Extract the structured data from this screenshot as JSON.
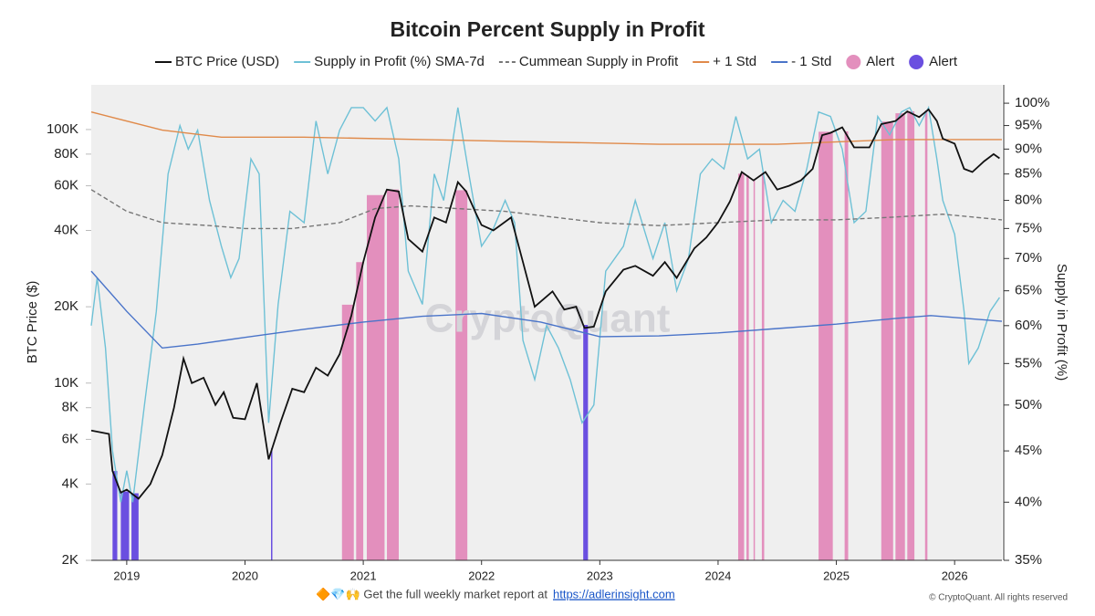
{
  "chart_data": {
    "type": "line",
    "title": "Bitcoin Percent Supply in Profit",
    "y_label": "BTC Price ($)",
    "y2_label": "Supply in Profit (%)",
    "watermark": "CryptoQuant",
    "footer_text": "🔶💎🙌 Get the full weekly market report at",
    "footer_link": "https://adlerinsight.com",
    "copyright": "© CryptoQuant. All rights reserved",
    "xlim": [
      2018.7,
      2026.4
    ],
    "xticks": [
      2019,
      2020,
      2021,
      2022,
      2023,
      2024,
      2025,
      2026
    ],
    "ylim": [
      2000,
      150000
    ],
    "log_y": true,
    "yticks": [
      {
        "value": 2000,
        "label": "2K"
      },
      {
        "value": 4000,
        "label": "4K"
      },
      {
        "value": 6000,
        "label": "6K"
      },
      {
        "value": 8000,
        "label": "8K"
      },
      {
        "value": 10000,
        "label": "10K"
      },
      {
        "value": 20000,
        "label": "20K"
      },
      {
        "value": 40000,
        "label": "40K"
      },
      {
        "value": 60000,
        "label": "60K"
      },
      {
        "value": 80000,
        "label": "80K"
      },
      {
        "value": 100000,
        "label": "100K"
      }
    ],
    "y2lim": [
      35,
      104.3
    ],
    "log_y2": true,
    "y2ticks": [
      {
        "value": 35,
        "label": "35%"
      },
      {
        "value": 40,
        "label": "40%"
      },
      {
        "value": 45,
        "label": "45%"
      },
      {
        "value": 50,
        "label": "50%"
      },
      {
        "value": 55,
        "label": "55%"
      },
      {
        "value": 60,
        "label": "60%"
      },
      {
        "value": 65,
        "label": "65%"
      },
      {
        "value": 70,
        "label": "70%"
      },
      {
        "value": 75,
        "label": "75%"
      },
      {
        "value": 80,
        "label": "80%"
      },
      {
        "value": 85,
        "label": "85%"
      },
      {
        "value": 90,
        "label": "90%"
      },
      {
        "value": 95,
        "label": "95%"
      },
      {
        "value": 100,
        "label": "100%"
      }
    ],
    "series": [
      {
        "name": "BTC Price (USD)",
        "color": "#111111",
        "axis": "y",
        "x": [
          2018.7,
          2018.85,
          2018.88,
          2018.95,
          2019.0,
          2019.1,
          2019.2,
          2019.3,
          2019.4,
          2019.48,
          2019.55,
          2019.65,
          2019.75,
          2019.82,
          2019.9,
          2020.0,
          2020.1,
          2020.2,
          2020.3,
          2020.4,
          2020.5,
          2020.6,
          2020.7,
          2020.8,
          2020.9,
          2021.0,
          2021.1,
          2021.2,
          2021.3,
          2021.38,
          2021.5,
          2021.6,
          2021.7,
          2021.8,
          2021.87,
          2021.95,
          2022.0,
          2022.1,
          2022.25,
          2022.35,
          2022.45,
          2022.6,
          2022.7,
          2022.8,
          2022.87,
          2022.95,
          2023.05,
          2023.2,
          2023.3,
          2023.45,
          2023.55,
          2023.65,
          2023.8,
          2023.9,
          2024.0,
          2024.1,
          2024.2,
          2024.3,
          2024.4,
          2024.5,
          2024.6,
          2024.7,
          2024.8,
          2024.88,
          2024.95,
          2025.05,
          2025.15,
          2025.28,
          2025.38,
          2025.5,
          2025.6,
          2025.7,
          2025.78,
          2025.85,
          2025.9,
          2026.0,
          2026.08,
          2026.15,
          2026.25,
          2026.33,
          2026.38
        ],
        "values": [
          6500,
          6300,
          4500,
          3700,
          3800,
          3500,
          4000,
          5200,
          8000,
          12500,
          10000,
          10500,
          8200,
          9200,
          7300,
          7200,
          10000,
          5000,
          7000,
          9500,
          9200,
          11500,
          10700,
          13000,
          18500,
          30000,
          45000,
          58000,
          57000,
          37000,
          33000,
          45000,
          43000,
          62000,
          57000,
          47000,
          42000,
          40000,
          45000,
          30000,
          20000,
          23000,
          19500,
          20000,
          16500,
          16700,
          23000,
          28000,
          29000,
          26500,
          30000,
          26000,
          34000,
          37500,
          43000,
          52000,
          68000,
          63000,
          68000,
          58000,
          60000,
          63000,
          70000,
          95000,
          97000,
          102000,
          85000,
          85000,
          105000,
          108000,
          118000,
          112000,
          120000,
          108000,
          92000,
          88000,
          70000,
          68000,
          75000,
          80000,
          77000
        ]
      },
      {
        "name": "Supply in Profit (%) SMA-7d",
        "color": "#6ec1d6",
        "axis": "y2",
        "x": [
          2018.7,
          2018.75,
          2018.82,
          2018.88,
          2018.95,
          2019.0,
          2019.05,
          2019.15,
          2019.25,
          2019.35,
          2019.45,
          2019.52,
          2019.6,
          2019.7,
          2019.8,
          2019.88,
          2019.95,
          2020.05,
          2020.12,
          2020.2,
          2020.28,
          2020.38,
          2020.5,
          2020.6,
          2020.7,
          2020.8,
          2020.9,
          2021.0,
          2021.1,
          2021.2,
          2021.3,
          2021.38,
          2021.5,
          2021.6,
          2021.68,
          2021.8,
          2021.9,
          2022.0,
          2022.1,
          2022.2,
          2022.28,
          2022.35,
          2022.45,
          2022.55,
          2022.65,
          2022.75,
          2022.85,
          2022.95,
          2023.05,
          2023.2,
          2023.3,
          2023.45,
          2023.55,
          2023.65,
          2023.75,
          2023.85,
          2023.95,
          2024.05,
          2024.15,
          2024.25,
          2024.35,
          2024.45,
          2024.55,
          2024.65,
          2024.75,
          2024.85,
          2024.95,
          2025.05,
          2025.15,
          2025.25,
          2025.35,
          2025.45,
          2025.55,
          2025.62,
          2025.7,
          2025.78,
          2025.85,
          2025.9,
          2026.0,
          2026.08,
          2026.12,
          2026.2,
          2026.3,
          2026.38
        ],
        "values": [
          60,
          67,
          57,
          45,
          40,
          43,
          40,
          50,
          62,
          85,
          95,
          90,
          94,
          80,
          72,
          67,
          70,
          88,
          85,
          48,
          63,
          78,
          76,
          96,
          85,
          94,
          99,
          99,
          96,
          99,
          88,
          68,
          63,
          85,
          80,
          99,
          84,
          72,
          75,
          80,
          76,
          58,
          53,
          60,
          57,
          53,
          48,
          50,
          68,
          72,
          80,
          70,
          76,
          65,
          70,
          85,
          88,
          86,
          97,
          88,
          90,
          76,
          80,
          78,
          86,
          98,
          97,
          90,
          76,
          78,
          97,
          93,
          98,
          99,
          95,
          99,
          88,
          80,
          74,
          62,
          55,
          57,
          62,
          64
        ]
      },
      {
        "name": "Cummean Supply in Profit",
        "color": "#777777",
        "axis": "y2",
        "dash": true,
        "x": [
          2018.7,
          2019.0,
          2019.3,
          2019.7,
          2020.0,
          2020.4,
          2020.8,
          2021.1,
          2021.4,
          2021.8,
          2022.2,
          2022.6,
          2023.0,
          2023.5,
          2024.0,
          2024.5,
          2025.0,
          2025.5,
          2025.9,
          2026.4
        ],
        "values": [
          82,
          78,
          76,
          75.5,
          75,
          75,
          76,
          78.5,
          79,
          78.5,
          78,
          77,
          76,
          75.5,
          76,
          76.5,
          76.5,
          77,
          77.5,
          76.5
        ]
      },
      {
        "name": "+ 1 Std",
        "color": "#e08a4a",
        "axis": "y2",
        "x": [
          2018.7,
          2019.3,
          2019.8,
          2020.5,
          2021.5,
          2022.5,
          2023.5,
          2024.5,
          2025.5,
          2026.4
        ],
        "values": [
          98,
          94,
          92.5,
          92.5,
          92,
          91.5,
          91,
          91,
          92,
          92
        ]
      },
      {
        "name": "- 1 Std",
        "color": "#4a74c9",
        "axis": "y2",
        "x": [
          2018.7,
          2019.0,
          2019.3,
          2019.6,
          2020.0,
          2020.5,
          2021.0,
          2021.5,
          2022.0,
          2022.5,
          2023.0,
          2023.5,
          2024.0,
          2024.5,
          2025.0,
          2025.5,
          2025.8,
          2026.4
        ],
        "values": [
          68,
          62,
          57,
          57.5,
          58.4,
          59.5,
          60.5,
          61.3,
          61.7,
          60.5,
          58.5,
          58.6,
          59,
          59.6,
          60.2,
          61,
          61.4,
          60.6
        ]
      },
      {
        "name": "Alert",
        "color": "#e38fbd",
        "type": "band",
        "ranges": [
          [
            2020.82,
            2020.92
          ],
          [
            2020.94,
            2021.0
          ],
          [
            2021.03,
            2021.18
          ],
          [
            2021.2,
            2021.3
          ],
          [
            2021.78,
            2021.88
          ],
          [
            2024.17,
            2024.22
          ],
          [
            2024.24,
            2024.26
          ],
          [
            2024.3,
            2024.31
          ],
          [
            2024.37,
            2024.39
          ],
          [
            2024.85,
            2024.97
          ],
          [
            2025.07,
            2025.1
          ],
          [
            2025.38,
            2025.48
          ],
          [
            2025.5,
            2025.58
          ],
          [
            2025.6,
            2025.66
          ],
          [
            2025.75,
            2025.77
          ]
        ]
      },
      {
        "name": "Alert",
        "color": "#6a4fe0",
        "type": "band",
        "ranges": [
          [
            2018.88,
            2018.92
          ],
          [
            2018.95,
            2019.02
          ],
          [
            2019.04,
            2019.1
          ],
          [
            2020.22,
            2020.23
          ],
          [
            2022.86,
            2022.9
          ]
        ]
      }
    ]
  }
}
